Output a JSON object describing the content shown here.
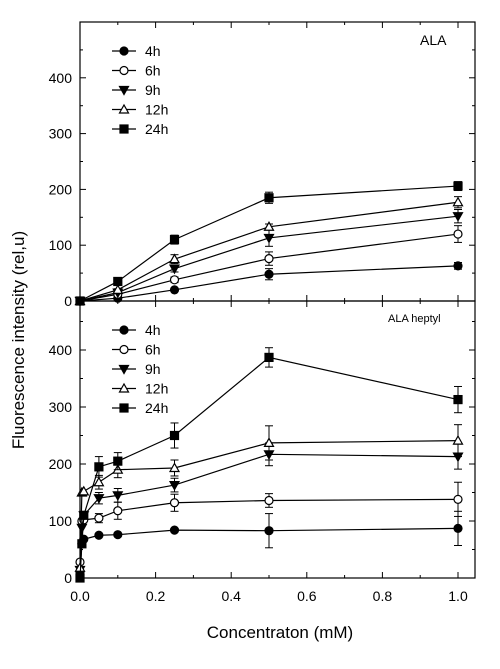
{
  "chart_data": {
    "type": "line",
    "xlabel": "Concentraton (mM)",
    "ylabel": "Fluorescence intensity (rel,u)",
    "xlim": [
      0,
      1.05
    ],
    "x_ticks": [
      "0.0",
      "0.2",
      "0.4",
      "0.6",
      "0.8",
      "1.0"
    ],
    "grid": false,
    "panels": [
      {
        "title": "ALA",
        "ylim": [
          0,
          500
        ],
        "y_ticks": [
          "0",
          "100",
          "200",
          "300",
          "400"
        ],
        "legend_position": "top-left",
        "series": [
          {
            "name": "4h",
            "marker": "filled-circle",
            "x": [
              0,
              0.1,
              0.25,
              0.5,
              1.0
            ],
            "y": [
              0,
              5,
              20,
              48,
              63
            ],
            "err": [
              0,
              2,
              3,
              10,
              6
            ]
          },
          {
            "name": "6h",
            "marker": "open-circle",
            "x": [
              0,
              0.1,
              0.25,
              0.5,
              1.0
            ],
            "y": [
              0,
              12,
              38,
              76,
              120
            ],
            "err": [
              0,
              2,
              5,
              12,
              15
            ]
          },
          {
            "name": "9h",
            "marker": "filled-triangle-down",
            "x": [
              0,
              0.1,
              0.25,
              0.5,
              1.0
            ],
            "y": [
              0,
              15,
              58,
              113,
              152
            ],
            "err": [
              0,
              2,
              6,
              15,
              12
            ]
          },
          {
            "name": "12h",
            "marker": "open-triangle-up",
            "x": [
              0,
              0.1,
              0.25,
              0.5,
              1.0
            ],
            "y": [
              0,
              20,
              75,
              133,
              177
            ],
            "err": [
              0,
              2,
              8,
              5,
              10
            ]
          },
          {
            "name": "24h",
            "marker": "filled-square",
            "x": [
              0,
              0.1,
              0.25,
              0.5,
              1.0
            ],
            "y": [
              0,
              35,
              110,
              185,
              206
            ],
            "err": [
              0,
              3,
              8,
              10,
              8
            ]
          }
        ]
      },
      {
        "title": "ALA  heptyl",
        "ylim": [
          0,
          480
        ],
        "y_ticks": [
          "0",
          "100",
          "200",
          "300",
          "400"
        ],
        "legend_position": "top-left",
        "series": [
          {
            "name": "4h",
            "marker": "filled-circle",
            "x": [
              0,
              0.005,
              0.01,
              0.05,
              0.1,
              0.25,
              0.5,
              1.0
            ],
            "y": [
              10,
              60,
              68,
              75,
              76,
              84,
              83,
              87
            ],
            "err": [
              0,
              0,
              0,
              0,
              0,
              0,
              30,
              30
            ]
          },
          {
            "name": "6h",
            "marker": "open-circle",
            "x": [
              0,
              0.005,
              0.01,
              0.05,
              0.1,
              0.25,
              0.5,
              1.0
            ],
            "y": [
              28,
              100,
              102,
              105,
              118,
              132,
              136,
              138
            ],
            "err": [
              0,
              0,
              0,
              8,
              15,
              15,
              12,
              30
            ]
          },
          {
            "name": "9h",
            "marker": "filled-triangle-down",
            "x": [
              0,
              0.005,
              0.01,
              0.05,
              0.1,
              0.25,
              0.5,
              1.0
            ],
            "y": [
              14,
              88,
              110,
              140,
              145,
              163,
              217,
              213
            ],
            "err": [
              0,
              0,
              0,
              10,
              12,
              12,
              20,
              22
            ]
          },
          {
            "name": "12h",
            "marker": "open-triangle-up",
            "x": [
              0,
              0.005,
              0.01,
              0.05,
              0.1,
              0.25,
              0.5,
              1.0
            ],
            "y": [
              18,
              150,
              152,
              168,
              190,
              193,
              237,
              241
            ],
            "err": [
              0,
              0,
              0,
              12,
              14,
              14,
              30,
              28
            ]
          },
          {
            "name": "24h",
            "marker": "filled-square",
            "x": [
              0,
              0.005,
              0.01,
              0.05,
              0.1,
              0.25,
              0.5,
              1.0
            ],
            "y": [
              0,
              60,
              110,
              195,
              205,
              250,
              387,
              313
            ],
            "err": [
              0,
              0,
              0,
              18,
              15,
              22,
              17,
              23
            ]
          }
        ]
      }
    ]
  }
}
